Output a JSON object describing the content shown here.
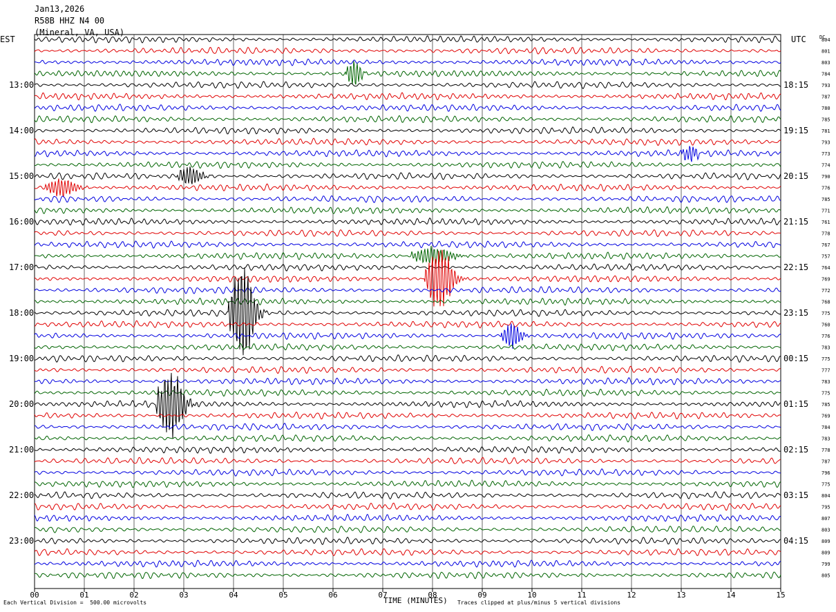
{
  "header": {
    "date": "Jan13,2026",
    "station": "R58B HHZ N4 00",
    "location": "(Mineral, VA, USA)"
  },
  "left_label": "EST",
  "right_label": "UTC",
  "dc_label": "DC",
  "footer": {
    "scale_note": "Each Vertical Division =  500.00 microvolts",
    "xaxis_title": "TIME (MINUTES)",
    "clip_note": "Traces clipped at plus/minus 5 vertical divisions"
  },
  "colors": {
    "trace_cycle": [
      "#000000",
      "#e00000",
      "#0000e0",
      "#006400"
    ],
    "grid": "#000000"
  },
  "chart_data": {
    "type": "line",
    "title": "",
    "xlabel": "TIME (MINUTES)",
    "xlim": [
      0,
      15
    ],
    "x_ticks": [
      "00",
      "01",
      "02",
      "03",
      "04",
      "05",
      "06",
      "07",
      "08",
      "09",
      "10",
      "11",
      "12",
      "13",
      "14",
      "15"
    ],
    "rows_per_hour": 4,
    "est_hour_labels": [
      {
        "row": 4,
        "label": "13:00"
      },
      {
        "row": 8,
        "label": "14:00"
      },
      {
        "row": 12,
        "label": "15:00"
      },
      {
        "row": 16,
        "label": "16:00"
      },
      {
        "row": 20,
        "label": "17:00"
      },
      {
        "row": 24,
        "label": "18:00"
      },
      {
        "row": 28,
        "label": "19:00"
      },
      {
        "row": 32,
        "label": "20:00"
      },
      {
        "row": 36,
        "label": "21:00"
      },
      {
        "row": 40,
        "label": "22:00"
      },
      {
        "row": 44,
        "label": "23:00"
      }
    ],
    "utc_hour_labels": [
      {
        "row": 4,
        "label": "18:15"
      },
      {
        "row": 8,
        "label": "19:15"
      },
      {
        "row": 12,
        "label": "20:15"
      },
      {
        "row": 16,
        "label": "21:15"
      },
      {
        "row": 20,
        "label": "22:15"
      },
      {
        "row": 24,
        "label": "23:15"
      },
      {
        "row": 28,
        "label": "00:15"
      },
      {
        "row": 32,
        "label": "01:15"
      },
      {
        "row": 36,
        "label": "02:15"
      },
      {
        "row": 40,
        "label": "03:15"
      },
      {
        "row": 44,
        "label": "04:15"
      }
    ],
    "dc_offsets": [
      "804",
      "801",
      "803",
      "784",
      "793",
      "787",
      "780",
      "785",
      "781",
      "793",
      "773",
      "774",
      "790",
      "776",
      "785",
      "771",
      "761",
      "778",
      "767",
      "757",
      "764",
      "769",
      "772",
      "768",
      "775",
      "760",
      "776",
      "783",
      "775",
      "777",
      "783",
      "775",
      "785",
      "769",
      "784",
      "783",
      "778",
      "787",
      "796",
      "775",
      "804",
      "795",
      "807",
      "803",
      "809",
      "809",
      "799",
      "805"
    ],
    "events": [
      {
        "row": 24,
        "minute": 4.05,
        "amplitude": 4.5,
        "duration": 0.5
      },
      {
        "row": 21,
        "minute": 8.0,
        "amplitude": 3.0,
        "duration": 0.55
      },
      {
        "row": 32,
        "minute": 2.6,
        "amplitude": 3.2,
        "duration": 0.55
      },
      {
        "row": 26,
        "minute": 9.5,
        "amplitude": 1.2,
        "duration": 0.4
      },
      {
        "row": 3,
        "minute": 6.35,
        "amplitude": 1.3,
        "duration": 0.3
      },
      {
        "row": 13,
        "minute": 0.4,
        "amplitude": 0.9,
        "duration": 0.6
      },
      {
        "row": 12,
        "minute": 3.0,
        "amplitude": 0.9,
        "duration": 0.5
      },
      {
        "row": 19,
        "minute": 7.8,
        "amplitude": 0.9,
        "duration": 0.8
      },
      {
        "row": 10,
        "minute": 13.1,
        "amplitude": 0.8,
        "duration": 0.3
      }
    ]
  }
}
